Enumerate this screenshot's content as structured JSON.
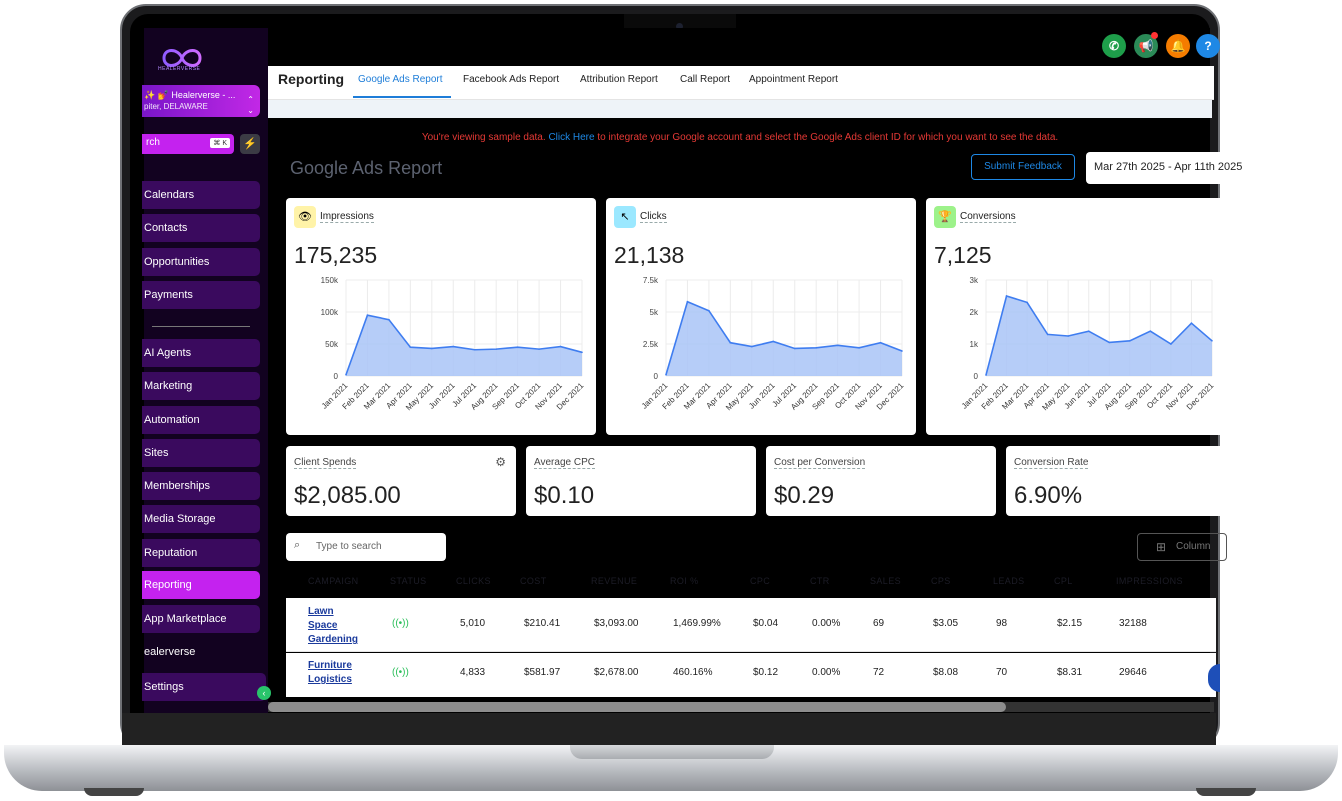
{
  "brand": {
    "logo_text": "HEALERVERSE"
  },
  "account": {
    "name": "✨ 💅 Healerverse - ...",
    "location": "piter, DELAWARE"
  },
  "sidebar": {
    "search_text": "rch",
    "search_shortcut": "⌘ K",
    "items": [
      {
        "label": "Calendars"
      },
      {
        "label": "Contacts"
      },
      {
        "label": "Opportunities"
      },
      {
        "label": "Payments"
      },
      {
        "label": "AI Agents"
      },
      {
        "label": "Marketing"
      },
      {
        "label": "Automation"
      },
      {
        "label": "Sites"
      },
      {
        "label": "Memberships"
      },
      {
        "label": "Media Storage"
      },
      {
        "label": "Reputation"
      },
      {
        "label": "Reporting"
      },
      {
        "label": "App Marketplace"
      },
      {
        "label": "ealerverse"
      },
      {
        "label": "Settings"
      }
    ]
  },
  "header": {
    "section_title": "Reporting",
    "tabs": [
      {
        "label": "Google Ads Report"
      },
      {
        "label": "Facebook Ads Report"
      },
      {
        "label": "Attribution Report"
      },
      {
        "label": "Call Report"
      },
      {
        "label": "Appointment Report"
      }
    ],
    "active_tab": "Google Ads Report"
  },
  "notice": {
    "prefix": "You're viewing sample data.",
    "link": "Click Here",
    "suffix": "to integrate your Google account and select the Google Ads client ID for which you want to see the data."
  },
  "report": {
    "title": "Google Ads Report",
    "feedback_label": "Submit Feedback",
    "date_range": "Mar 27th 2025 - Apr 11th 2025"
  },
  "chart_data": [
    {
      "type": "area",
      "title": "Impressions",
      "total": "175,235",
      "categories": [
        "Jan 2021",
        "Feb 2021",
        "Mar 2021",
        "Apr 2021",
        "May 2021",
        "Jun 2021",
        "Jul 2021",
        "Aug 2021",
        "Sep 2021",
        "Oct 2021",
        "Nov 2021",
        "Dec 2021"
      ],
      "y_ticks": [
        "0",
        "50k",
        "100k",
        "150k"
      ],
      "ylim": [
        0,
        150000
      ],
      "values": [
        2000,
        95000,
        88000,
        45000,
        43000,
        46000,
        41000,
        42000,
        45000,
        42000,
        46000,
        37000
      ],
      "color": "#3f7df0"
    },
    {
      "type": "area",
      "title": "Clicks",
      "total": "21,138",
      "categories": [
        "Jan 2021",
        "Feb 2021",
        "Mar 2021",
        "Apr 2021",
        "May 2021",
        "Jun 2021",
        "Jul 2021",
        "Aug 2021",
        "Sep 2021",
        "Oct 2021",
        "Nov 2021",
        "Dec 2021"
      ],
      "y_ticks": [
        "0",
        "2.5k",
        "5k",
        "7.5k"
      ],
      "ylim": [
        0,
        7500
      ],
      "values": [
        100,
        5800,
        5100,
        2600,
        2300,
        2700,
        2150,
        2200,
        2400,
        2200,
        2600,
        1950
      ],
      "color": "#3f7df0"
    },
    {
      "type": "area",
      "title": "Conversions",
      "total": "7,125",
      "categories": [
        "Jan 2021",
        "Feb 2021",
        "Mar 2021",
        "Apr 2021",
        "May 2021",
        "Jun 2021",
        "Jul 2021",
        "Aug 2021",
        "Sep 2021",
        "Oct 2021",
        "Nov 2021",
        "Dec 2021"
      ],
      "y_ticks": [
        "0",
        "1k",
        "2k",
        "3k"
      ],
      "ylim": [
        0,
        3000
      ],
      "values": [
        30,
        2500,
        2300,
        1300,
        1250,
        1400,
        1050,
        1100,
        1400,
        1000,
        1650,
        1100
      ],
      "color": "#3f7df0"
    }
  ],
  "stats": [
    {
      "label": "Client Spends",
      "value": "$2,085.00"
    },
    {
      "label": "Average CPC",
      "value": "$0.10"
    },
    {
      "label": "Cost per Conversion",
      "value": "$0.29"
    },
    {
      "label": "Conversion Rate",
      "value": "6.90%"
    }
  ],
  "table": {
    "search_placeholder": "Type to search",
    "columns_label": "Column",
    "headers": [
      "CAMPAIGN",
      "STATUS",
      "CLICKS",
      "COST",
      "REVENUE",
      "ROI %",
      "CPC",
      "CTR",
      "SALES",
      "CPS",
      "LEADS",
      "CPL",
      "IMPRESSIONS"
    ],
    "rows": [
      {
        "campaign_line1": "Lawn",
        "campaign_line2": "Space",
        "campaign_line3": "Gardening",
        "status": "((•))",
        "clicks": "5,010",
        "cost": "$210.41",
        "revenue": "$3,093.00",
        "roi": "1,469.99%",
        "cpc": "$0.04",
        "ctr": "0.00%",
        "sales": "69",
        "cps": "$3.05",
        "leads": "98",
        "cpl": "$2.15",
        "impressions": "32188"
      },
      {
        "campaign_line1": "Furniture",
        "campaign_line2": "Logistics",
        "campaign_line3": "",
        "status": "((•))",
        "clicks": "4,833",
        "cost": "$581.97",
        "revenue": "$2,678.00",
        "roi": "460.16%",
        "cpc": "$0.12",
        "ctr": "0.00%",
        "sales": "72",
        "cps": "$8.08",
        "leads": "70",
        "cpl": "$8.31",
        "impressions": "29646"
      }
    ]
  }
}
